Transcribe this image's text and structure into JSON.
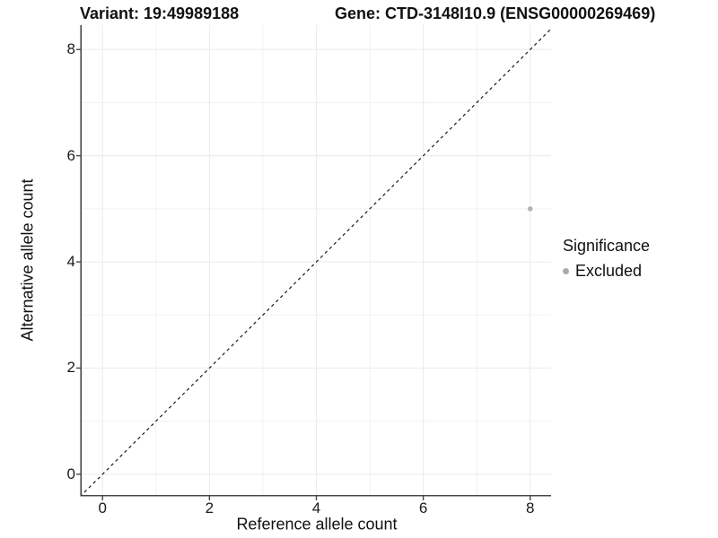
{
  "chart_data": {
    "type": "scatter",
    "titles": {
      "left": "Variant: 19:49989188",
      "right": "Gene: CTD-3148I10.9 (ENSG00000269469)"
    },
    "xlabel": "Reference allele count",
    "ylabel": "Alternative allele count",
    "xlim": [
      -0.39,
      8.39
    ],
    "ylim": [
      -0.39,
      8.46
    ],
    "x_ticks": [
      0,
      2,
      4,
      6,
      8
    ],
    "y_ticks": [
      0,
      2,
      4,
      6,
      8
    ],
    "x_minor_gridlines": [
      1,
      3,
      5,
      7
    ],
    "y_minor_gridlines": [
      1,
      3,
      5,
      7
    ],
    "grid": true,
    "identity_line": {
      "slope": 1,
      "intercept": 0,
      "style": "dashed",
      "color": "#1a1a1a"
    },
    "series": [
      {
        "name": "Excluded",
        "color": "#b3b3b3",
        "points": [
          [
            8,
            5
          ]
        ]
      }
    ],
    "legend": {
      "position": "right",
      "title": "Significance",
      "entries": [
        {
          "label": "Excluded",
          "color": "#ababab"
        }
      ]
    },
    "colors": {
      "major_grid": "#ececec",
      "minor_grid": "#f2f2f2",
      "axis_line": "#474747",
      "background": "#ffffff"
    }
  }
}
